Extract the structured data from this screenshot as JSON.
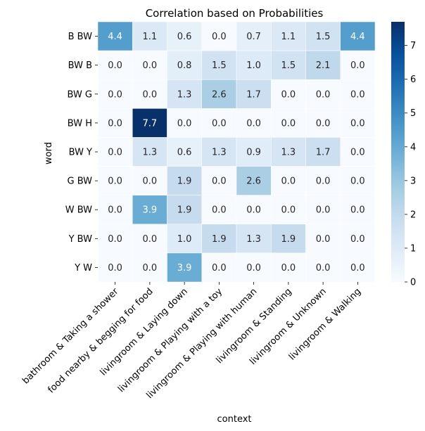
{
  "chart_data": {
    "type": "heatmap",
    "title": "Correlation based on Probabilities",
    "xlabel": "context",
    "ylabel": "word",
    "x_categories": [
      "bathroom & Taking a shower",
      "food nearby & begging for food",
      "livingroom & Laying down",
      "livingroom & Playing with a toy",
      "livingroom & Playing with human",
      "livingroom & Standing",
      "livingroom & Unknown",
      "livingroom & Walking"
    ],
    "y_categories": [
      "B BW",
      "BW B",
      "BW G",
      "BW H",
      "BW Y",
      "G BW",
      "W BW",
      "Y BW",
      "Y W"
    ],
    "values": [
      [
        4.4,
        1.1,
        0.6,
        0.0,
        0.7,
        1.1,
        1.5,
        4.4
      ],
      [
        0.0,
        0.0,
        0.8,
        1.5,
        1.0,
        1.5,
        2.1,
        0.0
      ],
      [
        0.0,
        0.0,
        1.3,
        2.6,
        1.7,
        0.0,
        0.0,
        0.0
      ],
      [
        0.0,
        7.7,
        0.0,
        0.0,
        0.0,
        0.0,
        0.0,
        0.0
      ],
      [
        0.0,
        1.3,
        0.6,
        1.3,
        0.9,
        1.3,
        1.7,
        0.0
      ],
      [
        0.0,
        0.0,
        1.9,
        0.0,
        2.6,
        0.0,
        0.0,
        0.0
      ],
      [
        0.0,
        3.9,
        1.9,
        0.0,
        0.0,
        0.0,
        0.0,
        0.0
      ],
      [
        0.0,
        0.0,
        1.0,
        1.9,
        1.3,
        1.9,
        0.0,
        0.0
      ],
      [
        0.0,
        0.0,
        3.9,
        0.0,
        0.0,
        0.0,
        0.0,
        0.0
      ]
    ],
    "colormap": "Blues",
    "vmin": 0,
    "vmax": 7.7,
    "colorbar_ticks": [
      0,
      1,
      2,
      3,
      4,
      5,
      6,
      7
    ],
    "annotation_light_color": "#ffffff",
    "annotation_dark_color": "#262626"
  }
}
